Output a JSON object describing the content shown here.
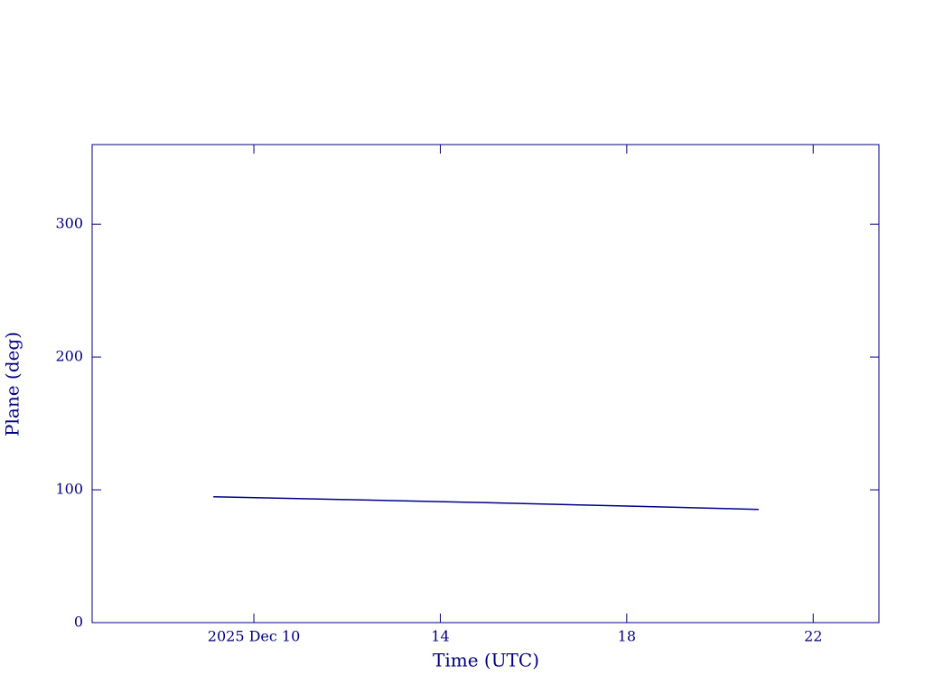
{
  "chart_data": {
    "type": "line",
    "xlabel": "Time (UTC)",
    "ylabel": "Plane (deg)",
    "x": [
      9.13,
      12,
      15,
      18,
      20.83
    ],
    "series": [
      {
        "color": "#00008b",
        "values": [
          94.8,
          92.6,
          90.3,
          87.8,
          85.2
        ]
      }
    ],
    "xlim": [
      6.53,
      23.41
    ],
    "xticks": [
      {
        "value": 10,
        "label": "2025 Dec 10"
      },
      14,
      18,
      22
    ],
    "ylim": [
      0,
      360
    ],
    "yticks": [
      0,
      100,
      200,
      300
    ],
    "axis_color": "#000080"
  }
}
